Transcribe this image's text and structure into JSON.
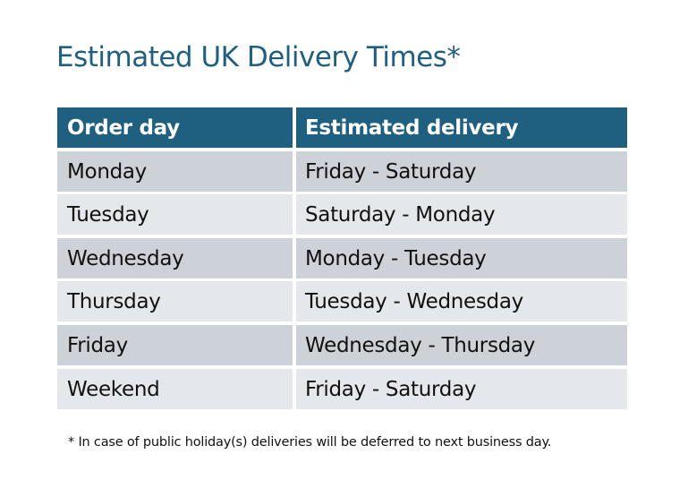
{
  "title": "Estimated UK Delivery Times*",
  "table": {
    "headers": [
      "Order day",
      "Estimated delivery"
    ],
    "rows": [
      [
        "Monday",
        "Friday - Saturday"
      ],
      [
        "Tuesday",
        "Saturday - Monday"
      ],
      [
        "Wednesday",
        "Monday - Tuesday"
      ],
      [
        "Thursday",
        "Tuesday - Wednesday"
      ],
      [
        "Friday",
        "Wednesday - Thursday"
      ],
      [
        "Weekend",
        "Friday - Saturday"
      ]
    ]
  },
  "footnote": "* In case of public holiday(s) deliveries will be deferred to next business day.",
  "colors": {
    "header": "#1f5f80",
    "row_dark": "#cdd1d8",
    "row_light": "#e4e7eb"
  }
}
